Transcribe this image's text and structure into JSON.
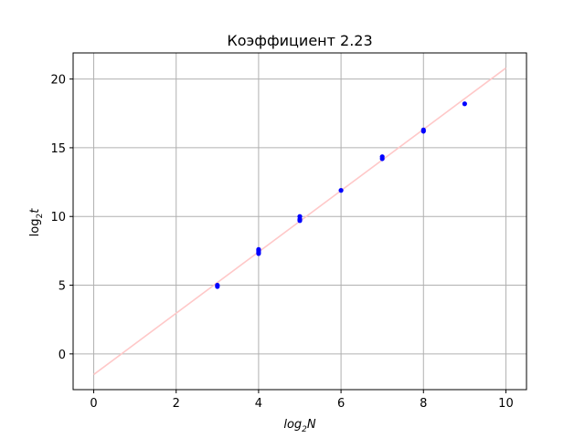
{
  "chart_data": {
    "type": "scatter",
    "title": "Коэффициент 2.23",
    "xlabel": {
      "base": "log",
      "sub": "2",
      "var": "N"
    },
    "ylabel": {
      "base": "log",
      "sub": "2",
      "var": "t"
    },
    "xlim": [
      -0.5,
      10.5
    ],
    "ylim": [
      -2.6,
      21.9
    ],
    "xticks": [
      0,
      2,
      4,
      6,
      8,
      10
    ],
    "yticks": [
      0,
      5,
      10,
      15,
      20
    ],
    "grid": true,
    "colors": {
      "points": "#0000ff",
      "fit": "#ffc8c8",
      "grid": "#b0b0b0",
      "axes": "#000000"
    },
    "series": [
      {
        "type": "scatter",
        "x": [
          3,
          3,
          4,
          4,
          4,
          4,
          5,
          5,
          5,
          6,
          7,
          7,
          8,
          8,
          9
        ],
        "y": [
          4.9,
          5.0,
          7.3,
          7.4,
          7.5,
          7.6,
          9.7,
          9.8,
          10.0,
          11.9,
          14.2,
          14.35,
          16.2,
          16.3,
          18.2
        ]
      },
      {
        "type": "line",
        "x": [
          0,
          10
        ],
        "y": [
          -1.5,
          20.8
        ]
      }
    ]
  }
}
